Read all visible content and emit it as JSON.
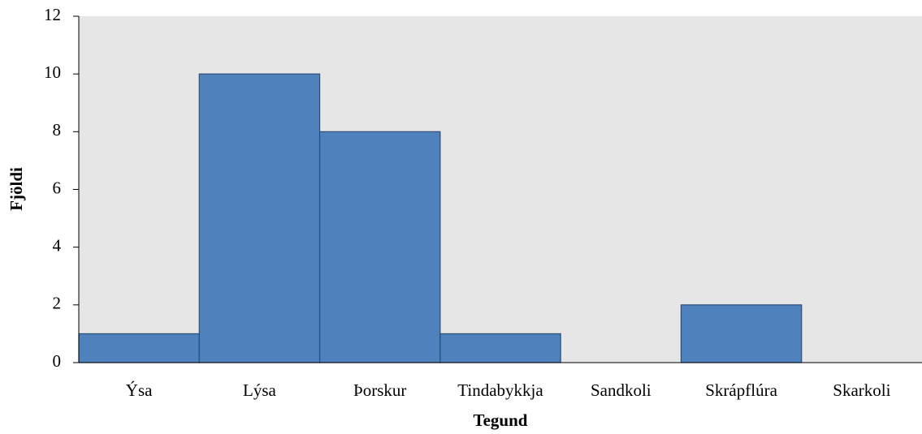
{
  "chart_data": {
    "type": "bar",
    "categories": [
      "Ýsa",
      "Lýsa",
      "Þorskur",
      "Tindabykkja",
      "Sandkoli",
      "Skrápflúra",
      "Skarkoli"
    ],
    "values": [
      1,
      10,
      8,
      1,
      0,
      2,
      0
    ],
    "color": "#4f81bd",
    "xlabel": "Tegund",
    "ylabel": "Fjöldi",
    "ylim": [
      0,
      12
    ],
    "yticks": [
      0,
      2,
      4,
      6,
      8,
      10,
      12
    ],
    "grid": false
  }
}
